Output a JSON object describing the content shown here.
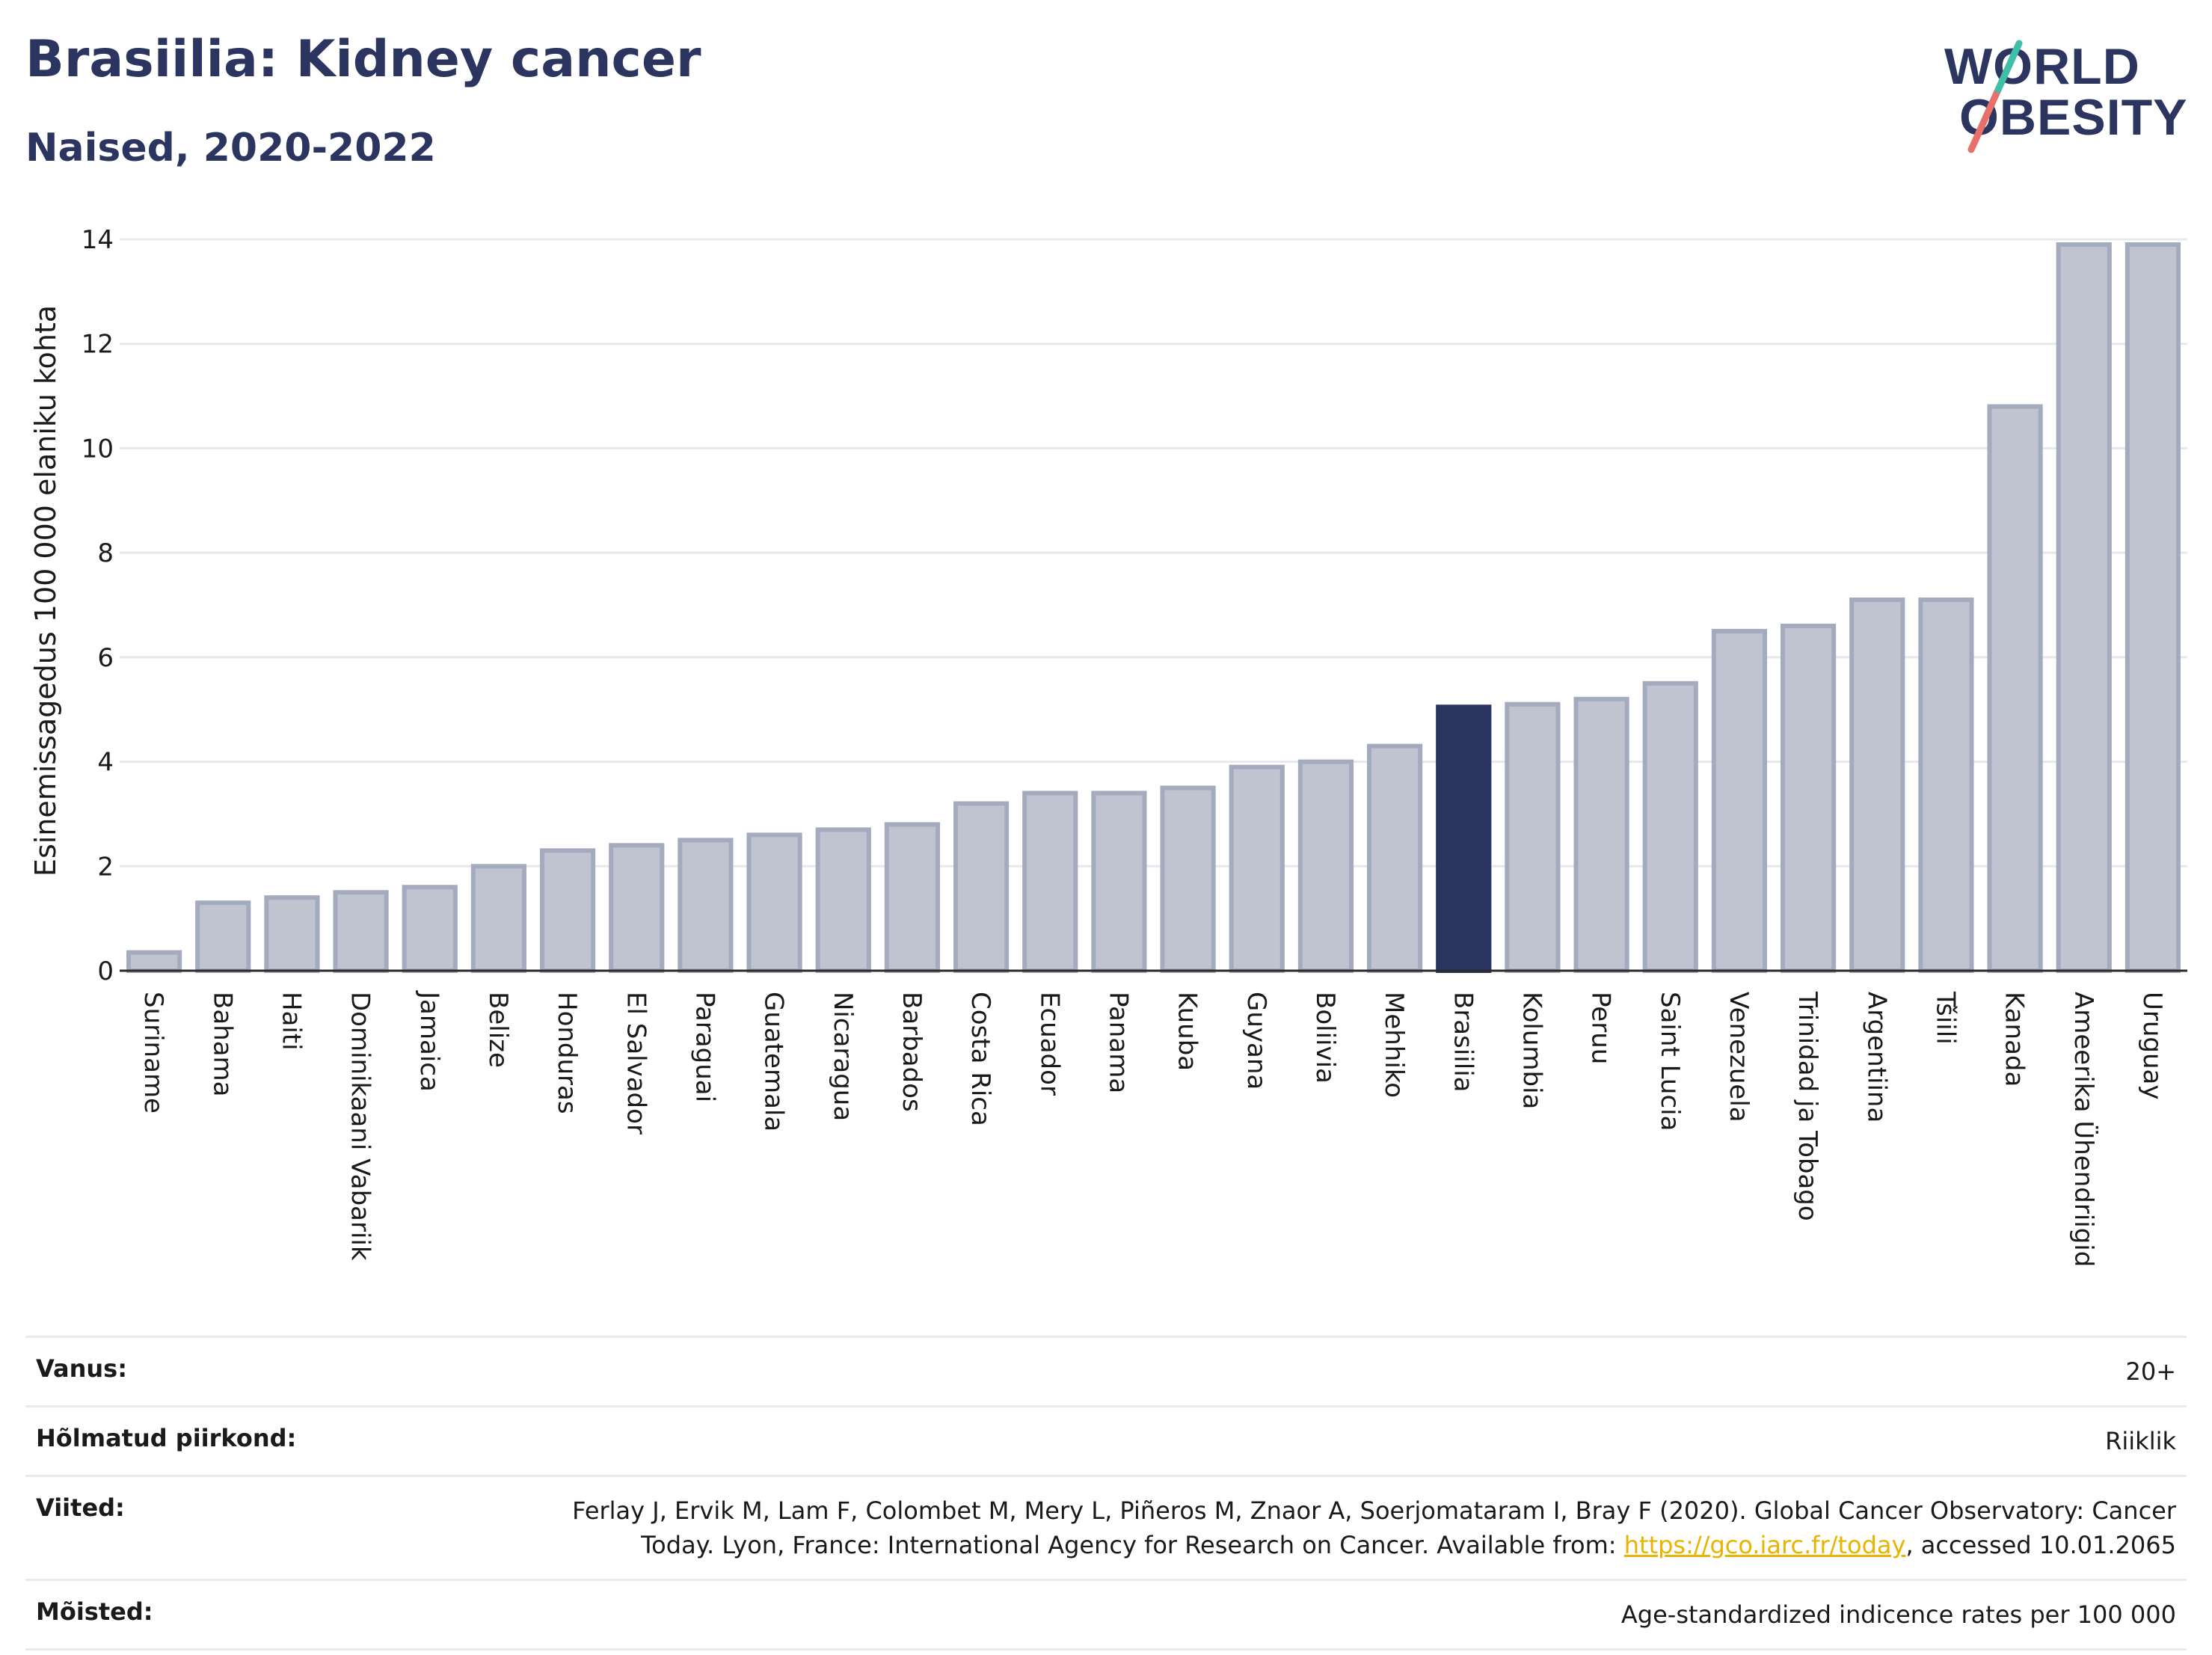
{
  "header": {
    "title": "Brasiilia: Kidney cancer",
    "subtitle": "Naised, 2020-2022"
  },
  "logo": {
    "line1": "WORLD",
    "line2": "OBESITY"
  },
  "colors": {
    "highlight": "#2b3560",
    "bar": "#c0c4d1",
    "bar_border": "#a4abbf",
    "text_dark": "#2b3560",
    "link": "#e8b400"
  },
  "chart_data": {
    "type": "bar",
    "ylabel": "Esinemissagedus 100 000 elaniku kohta",
    "ylim": [
      0,
      14
    ],
    "yticks": [
      0,
      2,
      4,
      6,
      8,
      10,
      12,
      14
    ],
    "grid": true,
    "highlight": "Brasiilia",
    "categories": [
      "Suriname",
      "Bahama",
      "Haiti",
      "Dominikaani Vabariik",
      "Jamaica",
      "Belize",
      "Honduras",
      "El Salvador",
      "Paraguai",
      "Guatemala",
      "Nicaragua",
      "Barbados",
      "Costa Rica",
      "Ecuador",
      "Panama",
      "Kuuba",
      "Guyana",
      "Boliivia",
      "Mehhiko",
      "Brasiilia",
      "Kolumbia",
      "Peruu",
      "Saint Lucia",
      "Venezuela",
      "Trinidad ja Tobago",
      "Argentiina",
      "Tšiili",
      "Kanada",
      "Ameerika Ühendriigid",
      "Uruguay"
    ],
    "values": [
      0.35,
      1.3,
      1.4,
      1.5,
      1.6,
      2.0,
      2.3,
      2.4,
      2.5,
      2.6,
      2.7,
      2.8,
      3.2,
      3.4,
      3.4,
      3.5,
      3.9,
      4.0,
      4.3,
      5.05,
      5.1,
      5.2,
      5.5,
      6.5,
      6.6,
      7.1,
      7.1,
      10.8,
      13.9,
      13.9
    ]
  },
  "meta": {
    "age": {
      "label": "Vanus:",
      "value": "20+"
    },
    "region": {
      "label": "Hõlmatud piirkond:",
      "value": "Riiklik"
    },
    "refs": {
      "label": "Viited:",
      "text1": "Ferlay J, Ervik M, Lam F, Colombet M, Mery L, Piñeros M, Znaor A, Soerjomataram I, Bray F (2020). Global Cancer Observatory: Cancer Today. Lyon, France: International Agency for Research on Cancer. Available from: ",
      "link": "https://gco.iarc.fr/today",
      "text2": ", accessed 10.01.2065"
    },
    "definitions": {
      "label": "Mõisted:",
      "value": "Age-standardized indicence rates per 100 000"
    }
  }
}
